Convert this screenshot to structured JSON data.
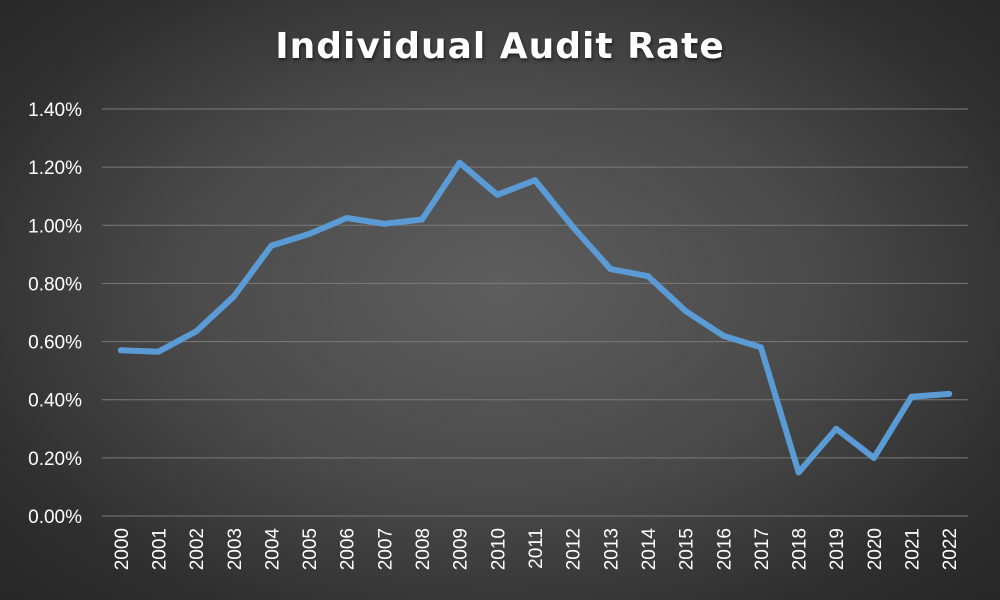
{
  "chart_data": {
    "type": "line",
    "title": "Individual Audit Rate",
    "xlabel": "",
    "ylabel": "",
    "categories": [
      "2000",
      "2001",
      "2002",
      "2003",
      "2004",
      "2005",
      "2006",
      "2007",
      "2008",
      "2009",
      "2010",
      "2011",
      "2012",
      "2013",
      "2014",
      "2015",
      "2016",
      "2017",
      "2018",
      "2019",
      "2020",
      "2021",
      "2022"
    ],
    "series": [
      {
        "values": [
          0.57,
          0.565,
          0.635,
          0.755,
          0.93,
          0.97,
          1.025,
          1.005,
          1.02,
          1.215,
          1.105,
          1.155,
          0.995,
          0.85,
          0.825,
          0.705,
          0.62,
          0.58,
          0.15,
          0.3,
          0.2,
          0.41,
          0.42
        ],
        "color": "#5b9bd5"
      }
    ],
    "ylim": [
      0,
      1.4
    ],
    "y_ticks": [
      0,
      0.2,
      0.4,
      0.6,
      0.8,
      1.0,
      1.2,
      1.4
    ],
    "y_tick_labels": [
      "0.00%",
      "0.20%",
      "0.40%",
      "0.60%",
      "0.80%",
      "1.00%",
      "1.20%",
      "1.40%"
    ],
    "y_unit": "percent",
    "grid": true,
    "legend": "none",
    "x_tick_rotation": "vertical",
    "colors": {
      "line": "#5b9bd5",
      "gridline": "#7a7a7a",
      "text": "#ffffff"
    }
  }
}
